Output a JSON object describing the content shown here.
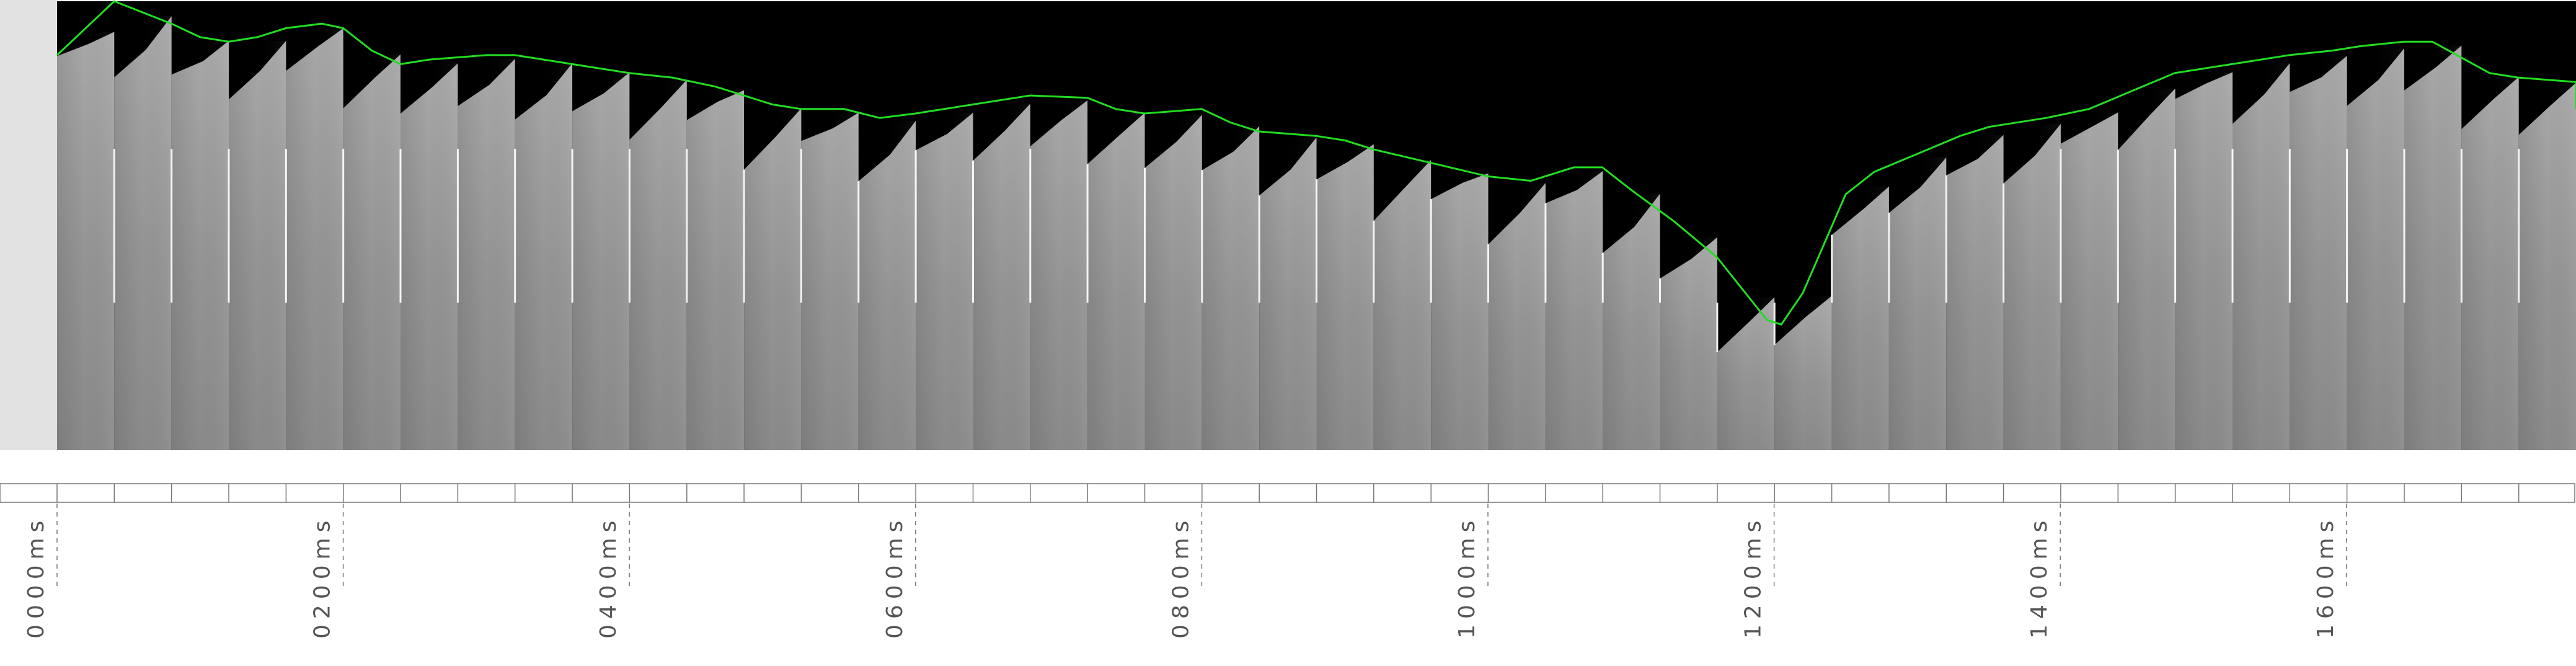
{
  "figure": {
    "background_color": "#ffffff",
    "panorama_background": "#000000",
    "left_reference_strip_color": "#e2e2e2",
    "frame_color": "#8e8e8e",
    "separator_color": "#ffffff",
    "waterline_color": "#22dd22",
    "axis_color": "#777777",
    "label_color": "#555555"
  },
  "time_axis": {
    "unit": "ms",
    "tick_labels": [
      "0000ms",
      "0200ms",
      "0400ms",
      "0600ms",
      "0800ms",
      "1000ms",
      "1200ms",
      "1400ms",
      "1600ms"
    ],
    "frame_count": 44
  },
  "chart_data": {
    "type": "line",
    "series": [
      {
        "points": [
          [
            0,
            0.88
          ],
          [
            40,
            1.0
          ],
          [
            80,
            0.95
          ],
          [
            100,
            0.92
          ],
          [
            120,
            0.91
          ],
          [
            140,
            0.92
          ],
          [
            160,
            0.94
          ],
          [
            185,
            0.95
          ],
          [
            200,
            0.94
          ],
          [
            220,
            0.89
          ],
          [
            240,
            0.86
          ],
          [
            260,
            0.87
          ],
          [
            280,
            0.875
          ],
          [
            300,
            0.88
          ],
          [
            320,
            0.88
          ],
          [
            340,
            0.87
          ],
          [
            360,
            0.86
          ],
          [
            380,
            0.85
          ],
          [
            400,
            0.84
          ],
          [
            430,
            0.83
          ],
          [
            460,
            0.81
          ],
          [
            480,
            0.79
          ],
          [
            500,
            0.77
          ],
          [
            520,
            0.76
          ],
          [
            550,
            0.76
          ],
          [
            575,
            0.74
          ],
          [
            600,
            0.75
          ],
          [
            640,
            0.77
          ],
          [
            680,
            0.79
          ],
          [
            720,
            0.785
          ],
          [
            740,
            0.76
          ],
          [
            760,
            0.75
          ],
          [
            800,
            0.76
          ],
          [
            820,
            0.73
          ],
          [
            840,
            0.71
          ],
          [
            880,
            0.7
          ],
          [
            900,
            0.69
          ],
          [
            920,
            0.67
          ],
          [
            960,
            0.64
          ],
          [
            1000,
            0.61
          ],
          [
            1030,
            0.6
          ],
          [
            1060,
            0.63
          ],
          [
            1080,
            0.63
          ],
          [
            1100,
            0.58
          ],
          [
            1130,
            0.51
          ],
          [
            1160,
            0.43
          ],
          [
            1180,
            0.35
          ],
          [
            1195,
            0.29
          ],
          [
            1205,
            0.28
          ],
          [
            1220,
            0.35
          ],
          [
            1250,
            0.57
          ],
          [
            1270,
            0.62
          ],
          [
            1300,
            0.66
          ],
          [
            1330,
            0.7
          ],
          [
            1350,
            0.72
          ],
          [
            1390,
            0.74
          ],
          [
            1420,
            0.76
          ],
          [
            1450,
            0.8
          ],
          [
            1480,
            0.84
          ],
          [
            1500,
            0.85
          ],
          [
            1520,
            0.86
          ],
          [
            1560,
            0.88
          ],
          [
            1590,
            0.89
          ],
          [
            1610,
            0.9
          ],
          [
            1640,
            0.91
          ],
          [
            1660,
            0.91
          ],
          [
            1680,
            0.875
          ],
          [
            1700,
            0.84
          ],
          [
            1720,
            0.83
          ],
          [
            1780,
            0.82
          ],
          [
            1800,
            0.8
          ],
          [
            1820,
            0.76
          ]
        ]
      }
    ],
    "ylim": [
      0,
      1
    ],
    "xlim": [
      0,
      1760
    ]
  }
}
